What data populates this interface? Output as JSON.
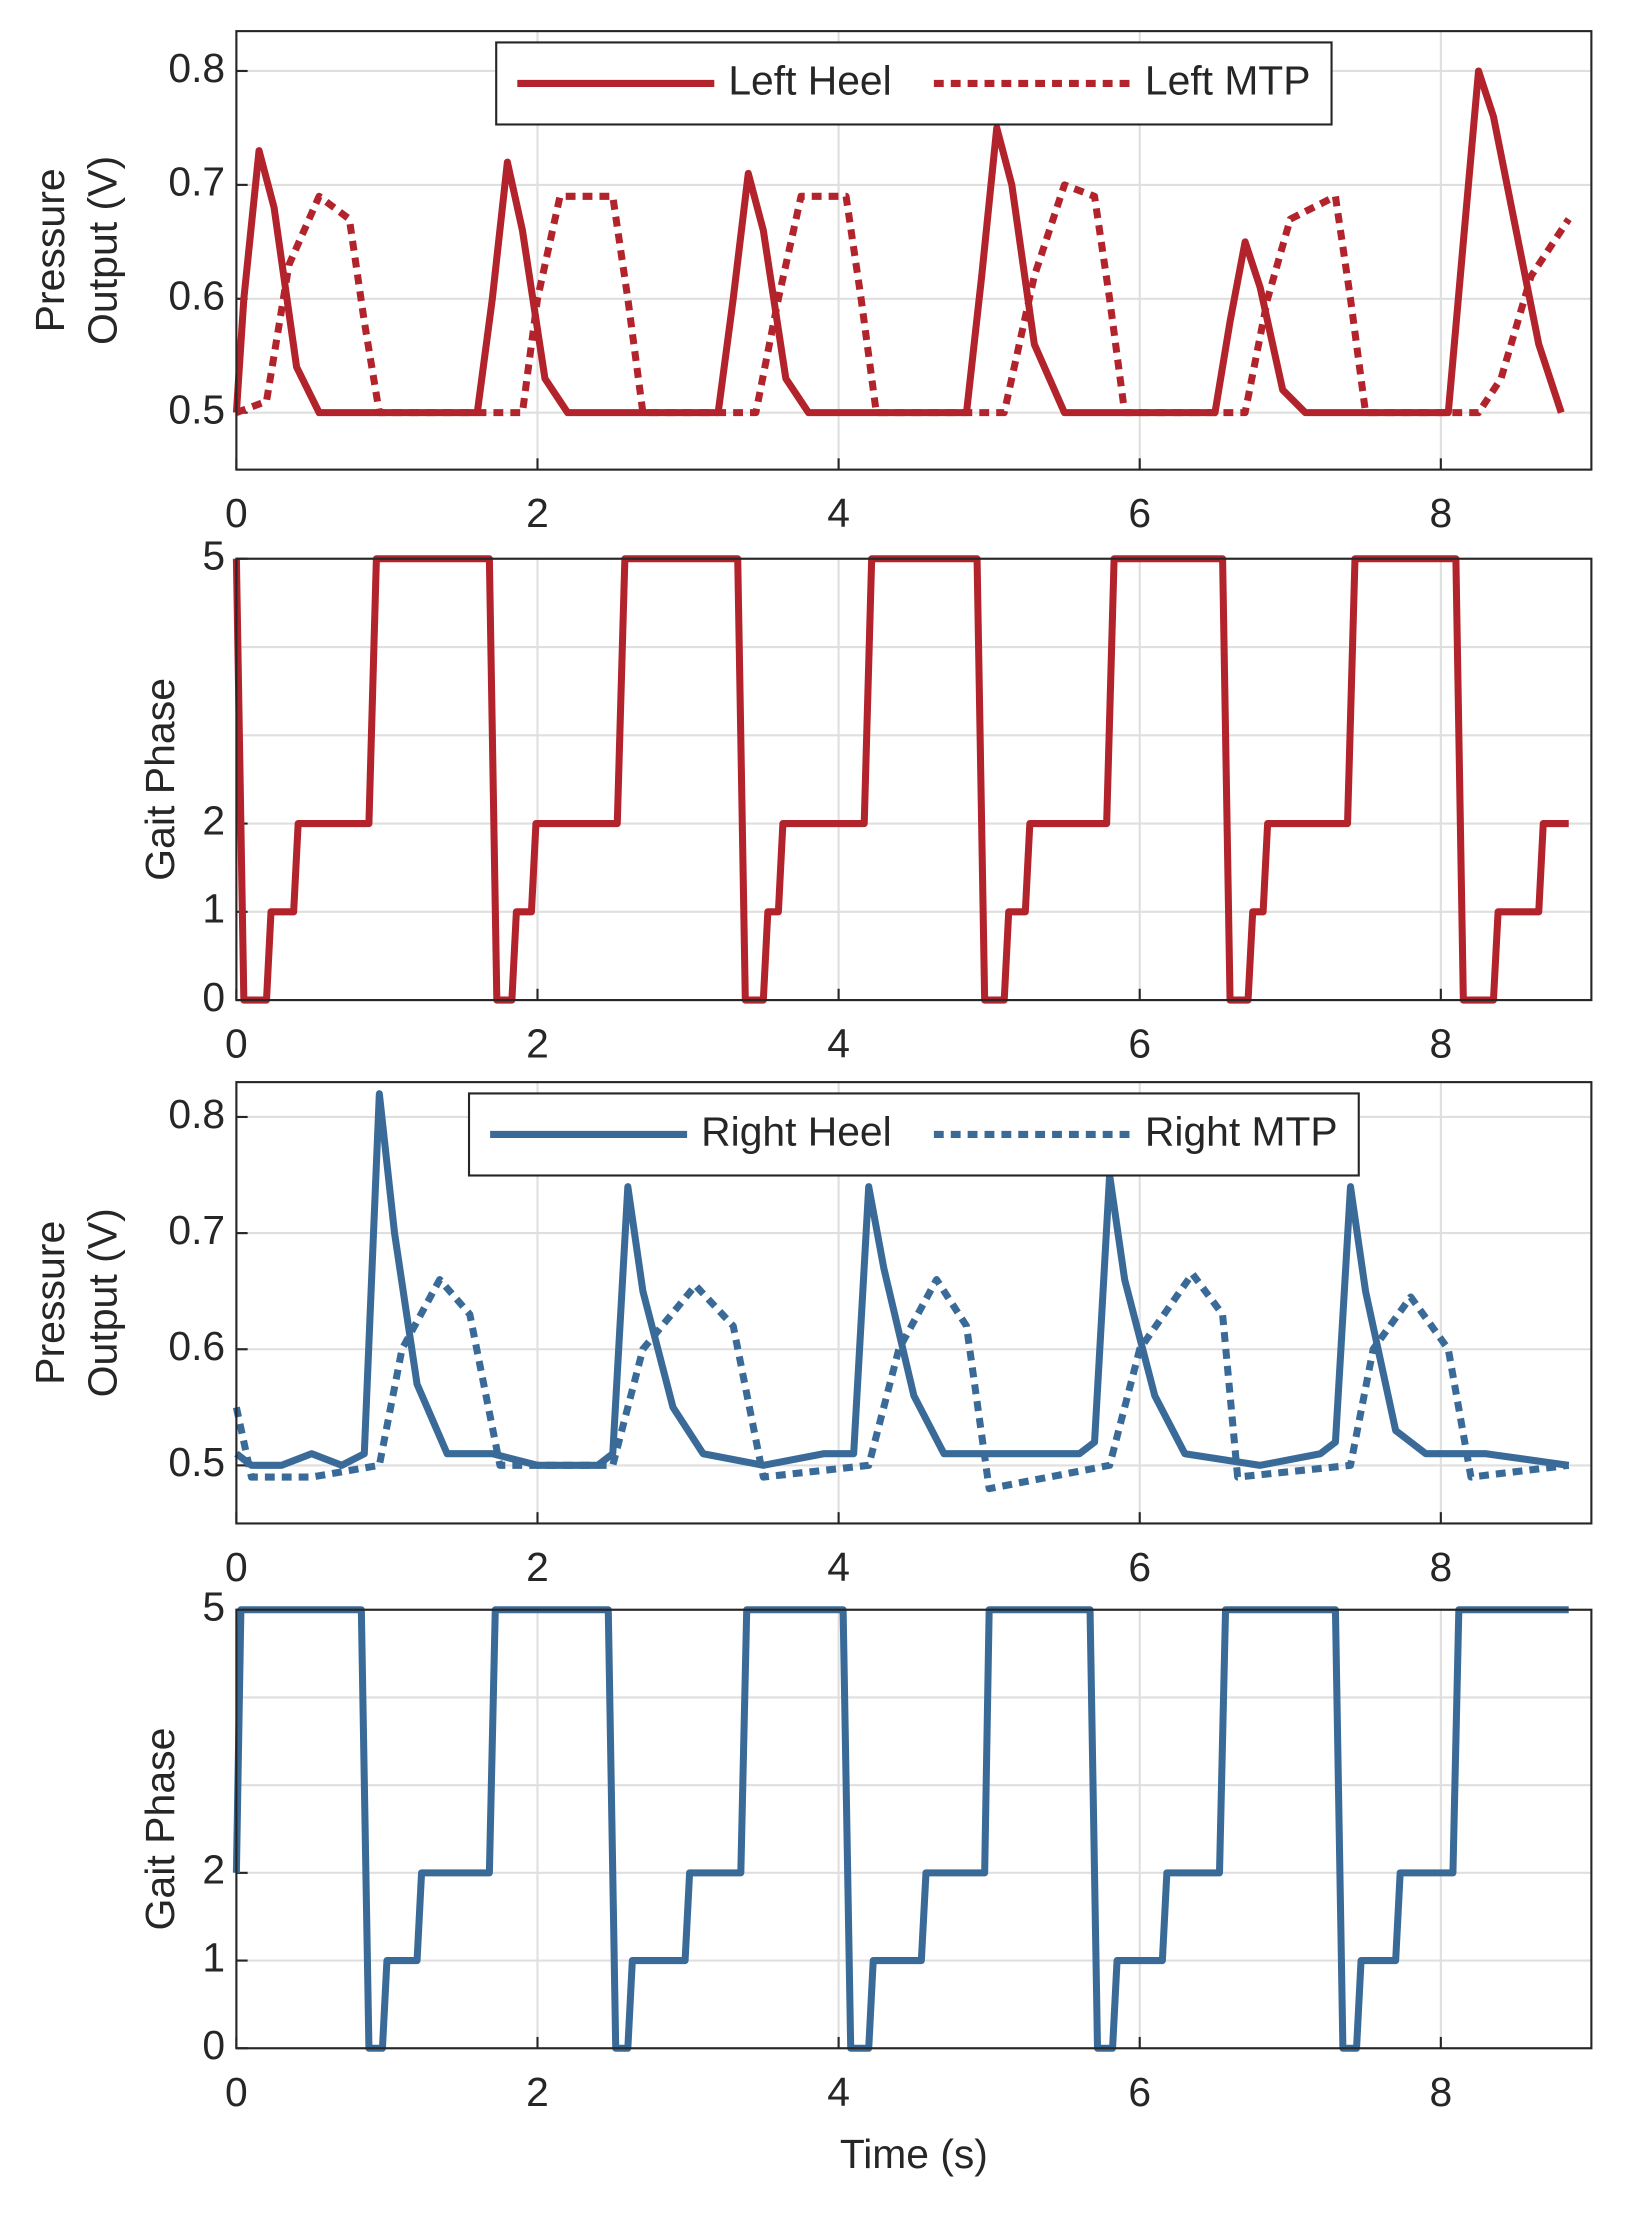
{
  "chart_data": [
    {
      "type": "line",
      "ylabel": [
        "Pressure",
        "Output (V)"
      ],
      "xlim": [
        0,
        9
      ],
      "xticks": [
        0,
        2,
        4,
        6,
        8
      ],
      "ylim": [
        0.45,
        0.835
      ],
      "yticks": [
        0.5,
        0.6,
        0.7,
        0.8
      ],
      "grid": true,
      "legend": "upper center",
      "series": [
        {
          "name": "Left Heel",
          "color": "#b3232b",
          "dashed": false,
          "x": [
            0,
            0.05,
            0.15,
            0.25,
            0.4,
            0.55,
            1.0,
            1.6,
            1.7,
            1.8,
            1.9,
            2.05,
            2.2,
            3.2,
            3.3,
            3.4,
            3.5,
            3.65,
            3.8,
            4.85,
            4.95,
            5.05,
            5.15,
            5.3,
            5.5,
            6.5,
            6.6,
            6.7,
            6.8,
            6.95,
            7.1,
            8.05,
            8.15,
            8.25,
            8.35,
            8.5,
            8.65,
            8.8
          ],
          "values": [
            0.5,
            0.6,
            0.73,
            0.68,
            0.54,
            0.5,
            0.5,
            0.5,
            0.6,
            0.72,
            0.66,
            0.53,
            0.5,
            0.5,
            0.6,
            0.71,
            0.66,
            0.53,
            0.5,
            0.5,
            0.62,
            0.75,
            0.7,
            0.56,
            0.5,
            0.5,
            0.58,
            0.65,
            0.61,
            0.52,
            0.5,
            0.5,
            0.65,
            0.8,
            0.76,
            0.66,
            0.56,
            0.5
          ]
        },
        {
          "name": "Left MTP",
          "color": "#b3232b",
          "dashed": true,
          "x": [
            0,
            0.2,
            0.35,
            0.55,
            0.75,
            0.85,
            0.95,
            1.9,
            2.0,
            2.15,
            2.5,
            2.6,
            2.7,
            3.45,
            3.6,
            3.75,
            4.05,
            4.15,
            4.25,
            5.1,
            5.3,
            5.5,
            5.7,
            5.8,
            5.9,
            6.7,
            6.85,
            7.0,
            7.3,
            7.4,
            7.5,
            8.25,
            8.4,
            8.6,
            8.85
          ],
          "values": [
            0.5,
            0.51,
            0.63,
            0.69,
            0.67,
            0.58,
            0.5,
            0.5,
            0.6,
            0.69,
            0.69,
            0.6,
            0.5,
            0.5,
            0.6,
            0.69,
            0.69,
            0.6,
            0.5,
            0.5,
            0.62,
            0.7,
            0.69,
            0.6,
            0.5,
            0.5,
            0.6,
            0.67,
            0.69,
            0.6,
            0.5,
            0.5,
            0.53,
            0.62,
            0.67
          ]
        }
      ]
    },
    {
      "type": "line",
      "ylabel": [
        "Gait Phase"
      ],
      "xlim": [
        0,
        9
      ],
      "xticks": [
        0,
        2,
        4,
        6,
        8
      ],
      "ylim": [
        0,
        5
      ],
      "yticks": [
        0,
        1,
        2,
        5
      ],
      "extra_grid": [
        3,
        4
      ],
      "grid": true,
      "series": [
        {
          "color": "#b3232b",
          "dashed": false,
          "x": [
            0,
            0.05,
            0.2,
            0.23,
            0.38,
            0.41,
            0.88,
            0.93,
            1.68,
            1.73,
            1.83,
            1.86,
            1.96,
            1.99,
            2.53,
            2.58,
            3.33,
            3.38,
            3.5,
            3.53,
            3.6,
            3.63,
            4.17,
            4.22,
            4.92,
            4.97,
            5.1,
            5.13,
            5.24,
            5.27,
            5.78,
            5.83,
            6.55,
            6.6,
            6.72,
            6.75,
            6.82,
            6.85,
            7.38,
            7.43,
            8.1,
            8.15,
            8.35,
            8.38,
            8.65,
            8.68,
            8.85
          ],
          "values": [
            5,
            0,
            0,
            1,
            1,
            2,
            2,
            5,
            5,
            0,
            0,
            1,
            1,
            2,
            2,
            5,
            5,
            0,
            0,
            1,
            1,
            2,
            2,
            5,
            5,
            0,
            0,
            1,
            1,
            2,
            2,
            5,
            5,
            0,
            0,
            1,
            1,
            2,
            2,
            5,
            5,
            0,
            0,
            1,
            1,
            2,
            2
          ]
        }
      ]
    },
    {
      "type": "line",
      "ylabel": [
        "Pressure",
        "Output (V)"
      ],
      "xlim": [
        0,
        9
      ],
      "xticks": [
        0,
        2,
        4,
        6,
        8
      ],
      "ylim": [
        0.45,
        0.83
      ],
      "yticks": [
        0.5,
        0.6,
        0.7,
        0.8
      ],
      "grid": true,
      "legend": "upper center",
      "series": [
        {
          "name": "Right Heel",
          "color": "#3a6b98",
          "dashed": false,
          "x": [
            0,
            0.1,
            0.3,
            0.5,
            0.7,
            0.85,
            0.95,
            1.05,
            1.2,
            1.4,
            1.7,
            2.0,
            2.4,
            2.5,
            2.6,
            2.7,
            2.9,
            3.1,
            3.5,
            3.9,
            4.1,
            4.2,
            4.3,
            4.5,
            4.7,
            5.2,
            5.6,
            5.7,
            5.8,
            5.9,
            6.1,
            6.3,
            6.8,
            7.2,
            7.3,
            7.4,
            7.5,
            7.7,
            7.9,
            8.3,
            8.85
          ],
          "values": [
            0.51,
            0.5,
            0.5,
            0.51,
            0.5,
            0.51,
            0.82,
            0.7,
            0.57,
            0.51,
            0.51,
            0.5,
            0.5,
            0.51,
            0.74,
            0.65,
            0.55,
            0.51,
            0.5,
            0.51,
            0.51,
            0.74,
            0.67,
            0.56,
            0.51,
            0.51,
            0.51,
            0.52,
            0.75,
            0.66,
            0.56,
            0.51,
            0.5,
            0.51,
            0.52,
            0.74,
            0.65,
            0.53,
            0.51,
            0.51,
            0.5
          ]
        },
        {
          "name": "Right MTP",
          "color": "#3a6b98",
          "dashed": true,
          "x": [
            0,
            0.1,
            0.5,
            0.95,
            1.1,
            1.35,
            1.55,
            1.75,
            2.5,
            2.7,
            3.05,
            3.3,
            3.5,
            4.2,
            4.4,
            4.65,
            4.85,
            5.0,
            5.8,
            6.0,
            6.35,
            6.55,
            6.65,
            7.4,
            7.55,
            7.8,
            8.05,
            8.2,
            8.85
          ],
          "values": [
            0.55,
            0.49,
            0.49,
            0.5,
            0.6,
            0.66,
            0.63,
            0.5,
            0.5,
            0.6,
            0.655,
            0.62,
            0.49,
            0.5,
            0.6,
            0.66,
            0.62,
            0.48,
            0.5,
            0.6,
            0.665,
            0.63,
            0.49,
            0.5,
            0.6,
            0.645,
            0.6,
            0.49,
            0.5
          ]
        }
      ]
    },
    {
      "type": "line",
      "ylabel": [
        "Gait Phase"
      ],
      "xlabel": "Time (s)",
      "xlim": [
        0,
        9
      ],
      "xticks": [
        0,
        2,
        4,
        6,
        8
      ],
      "ylim": [
        0,
        5
      ],
      "yticks": [
        0,
        1,
        2,
        5
      ],
      "extra_grid": [
        3,
        4
      ],
      "grid": true,
      "series": [
        {
          "color": "#3a6b98",
          "dashed": false,
          "x": [
            0,
            0.03,
            0.83,
            0.88,
            0.97,
            1.0,
            1.2,
            1.23,
            1.68,
            1.72,
            2.47,
            2.52,
            2.6,
            2.63,
            2.98,
            3.01,
            3.35,
            3.39,
            4.03,
            4.08,
            4.2,
            4.23,
            4.55,
            4.58,
            4.97,
            5.0,
            5.67,
            5.72,
            5.82,
            5.85,
            6.15,
            6.18,
            6.53,
            6.57,
            7.3,
            7.35,
            7.44,
            7.47,
            7.7,
            7.73,
            8.08,
            8.12,
            8.85
          ],
          "values": [
            2,
            5,
            5,
            0,
            0,
            1,
            1,
            2,
            2,
            5,
            5,
            0,
            0,
            1,
            1,
            2,
            2,
            5,
            5,
            0,
            0,
            1,
            1,
            2,
            2,
            5,
            5,
            0,
            0,
            1,
            1,
            2,
            2,
            5,
            5,
            0,
            0,
            1,
            1,
            2,
            2,
            5,
            5
          ]
        }
      ]
    }
  ]
}
